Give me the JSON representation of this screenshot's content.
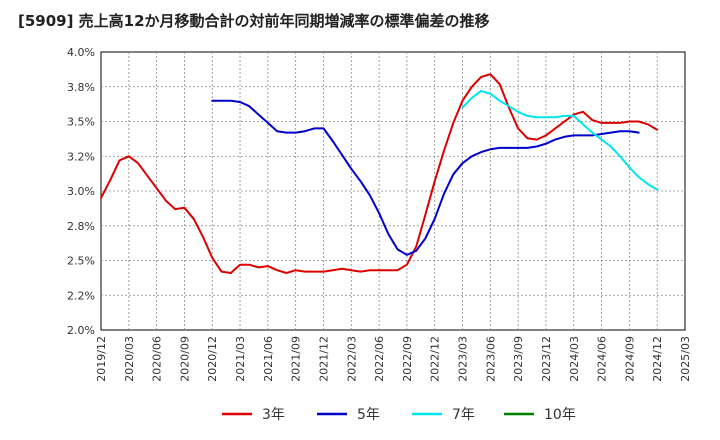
{
  "chart_data": {
    "type": "line",
    "title": "[5909]  売上高12か月移動合計の対前年同期増減率の標準偏差の推移",
    "ylim": [
      2.0,
      4.0
    ],
    "y_ticks": [
      "4.0%",
      "3.8%",
      "3.5%",
      "3.2%",
      "3.0%",
      "2.8%",
      "2.5%",
      "2.2%",
      "2.0%"
    ],
    "x_tick_labels": [
      "2019/12",
      "2020/03",
      "2020/06",
      "2020/09",
      "2020/12",
      "2021/03",
      "2021/06",
      "2021/09",
      "2021/12",
      "2022/03",
      "2022/06",
      "2022/09",
      "2022/12",
      "2023/03",
      "2023/06",
      "2023/09",
      "2023/12",
      "2024/03",
      "2024/06",
      "2024/09",
      "2024/12",
      "2025/03"
    ],
    "grid": true,
    "legend_position": "bottom",
    "series": [
      {
        "name": "3年",
        "color": "#dd0000",
        "start_index": 0,
        "values": [
          2.95,
          3.08,
          3.22,
          3.25,
          3.2,
          3.11,
          3.02,
          2.93,
          2.87,
          2.88,
          2.8,
          2.67,
          2.52,
          2.42,
          2.41,
          2.47,
          2.47,
          2.45,
          2.46,
          2.43,
          2.41,
          2.43,
          2.42,
          2.42,
          2.42,
          2.43,
          2.44,
          2.43,
          2.42,
          2.43,
          2.43,
          2.43,
          2.43,
          2.47,
          2.6,
          2.83,
          3.07,
          3.29,
          3.49,
          3.65,
          3.75,
          3.82,
          3.84,
          3.77,
          3.6,
          3.45,
          3.38,
          3.37,
          3.4,
          3.45,
          3.5,
          3.55,
          3.57,
          3.51,
          3.49,
          3.49,
          3.49,
          3.5,
          3.5,
          3.48,
          3.44
        ]
      },
      {
        "name": "5年",
        "color": "#0000cc",
        "start_index": 12,
        "values": [
          3.65,
          3.65,
          3.65,
          3.64,
          3.61,
          3.55,
          3.49,
          3.43,
          3.42,
          3.42,
          3.43,
          3.45,
          3.45,
          3.36,
          3.26,
          3.16,
          3.07,
          2.97,
          2.84,
          2.69,
          2.58,
          2.54,
          2.57,
          2.66,
          2.8,
          2.98,
          3.12,
          3.2,
          3.25,
          3.28,
          3.3,
          3.31,
          3.31,
          3.31,
          3.31,
          3.32,
          3.34,
          3.37,
          3.39,
          3.4,
          3.4,
          3.4,
          3.41,
          3.42,
          3.43,
          3.43,
          3.42
        ]
      },
      {
        "name": "7年",
        "color": "#00e5ee",
        "start_index": 39,
        "values": [
          3.6,
          3.67,
          3.72,
          3.7,
          3.65,
          3.61,
          3.57,
          3.54,
          3.53,
          3.53,
          3.53,
          3.54,
          3.54,
          3.48,
          3.42,
          3.37,
          3.32,
          3.25,
          3.17,
          3.1,
          3.05,
          3.01
        ]
      },
      {
        "name": "10年",
        "color": "#008000",
        "start_index": 0,
        "values": []
      }
    ]
  }
}
